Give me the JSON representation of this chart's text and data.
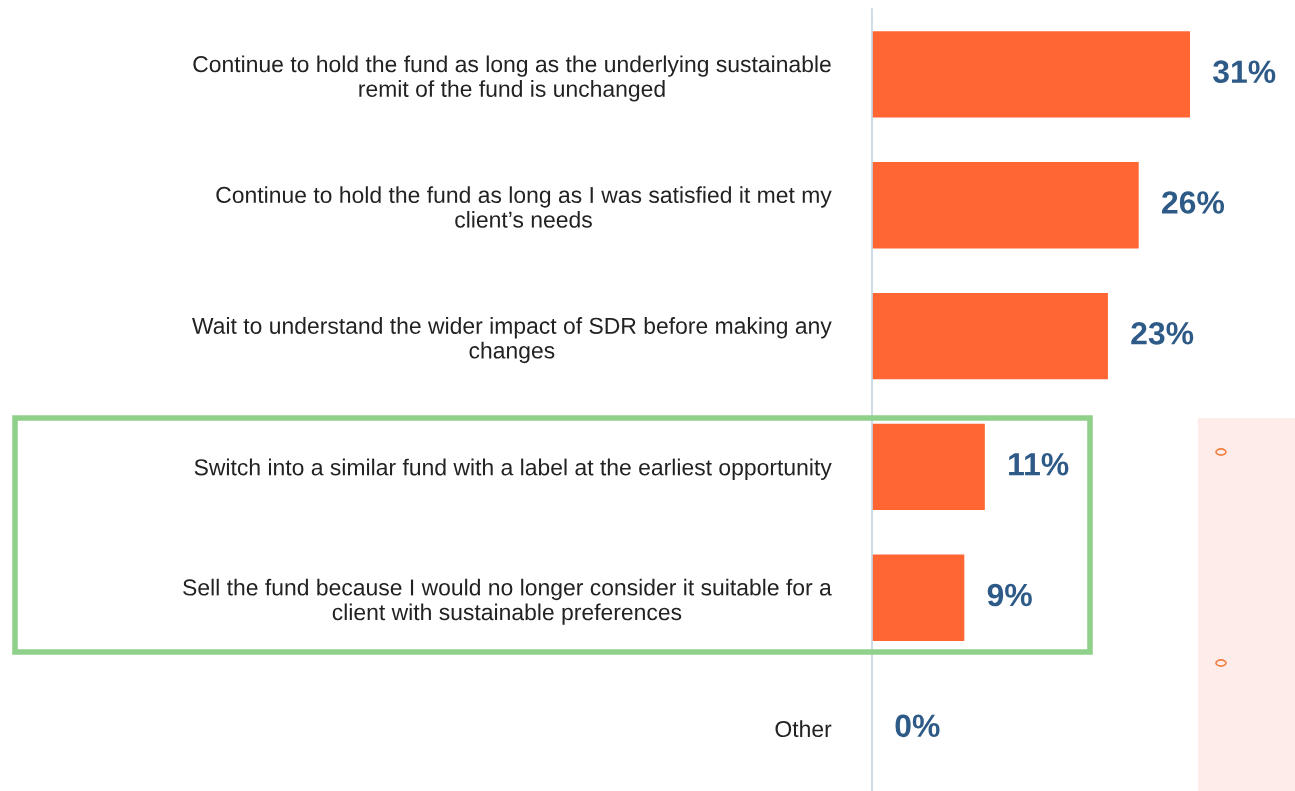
{
  "chart_data": {
    "type": "bar",
    "orientation": "horizontal",
    "categories": [
      "Continue to hold the fund as long as the underlying sustainable\nremit of the fund is unchanged",
      "Continue to hold the fund as long as I was satisfied it met my\nclient’s needs",
      "Wait to understand the wider impact of SDR before making any\nchanges",
      "Switch into a similar fund with a label at the earliest opportunity",
      "Sell the fund because I would no longer consider it suitable for a\nclient with sustainable preferences",
      "Other"
    ],
    "values": [
      31,
      26,
      23,
      11,
      9,
      0
    ],
    "value_labels": [
      "31%",
      "26%",
      "23%",
      "11%",
      "9%",
      "0%"
    ],
    "color": "#ff6633",
    "grid": false,
    "legend": false
  }
}
